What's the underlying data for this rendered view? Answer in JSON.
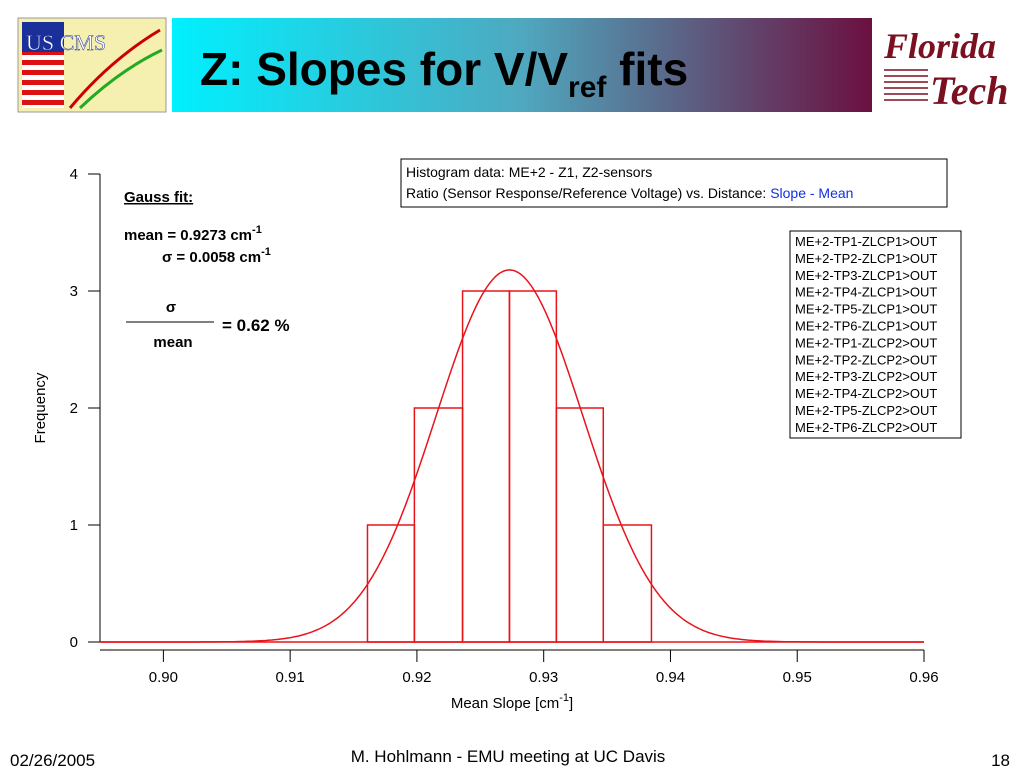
{
  "slide": {
    "title": "Z:  Slopes for V/V",
    "title_sub": "ref",
    "title_end": " fits",
    "logo_left": "US CMS",
    "logo_right_1": "Florida",
    "logo_right_2": "Tech",
    "footer_left": "02/26/2005",
    "footer_center": "M. Hohlmann - EMU meeting at UC Davis",
    "footer_right": "18"
  },
  "chart_data": {
    "type": "histogram",
    "color": "#e8141c",
    "bins": [
      0.9161,
      0.9198,
      0.9236,
      0.9273,
      0.931,
      0.9347,
      0.9385
    ],
    "counts": [
      1,
      2,
      3,
      3,
      2,
      1
    ],
    "xlim": [
      0.895,
      0.96
    ],
    "ylim": [
      0,
      4
    ],
    "xticks": [
      {
        "value": 0.9,
        "label": "0.90"
      },
      0.91,
      0.92,
      0.93,
      0.94,
      0.95,
      0.96
    ],
    "yticks": [
      0,
      1,
      2,
      3,
      4
    ],
    "xlabel": "Mean Slope [cm",
    "xlabel_sup": "-1",
    "xlabel_end": "]",
    "ylabel": "Frequency",
    "fit": {
      "heading": "Gauss fit:",
      "mean_label": "mean = ",
      "sigma_label": "σ = ",
      "unit": " cm",
      "unit_sup": "-1",
      "mean": 0.9273,
      "sigma": 0.0058,
      "amplitude": 3.18,
      "ratio_num": "σ",
      "ratio_den": "mean",
      "ratio_text": "=  0.62 %"
    },
    "info": {
      "line1": "Histogram data: ME+2 - Z1, Z2-sensors",
      "line2": "Ratio (Sensor Response/Reference Voltage) vs. Distance: ",
      "line2_blue": "Slope - Mean"
    },
    "legend_entries": [
      "ME+2-TP1-ZLCP1>OUT",
      "ME+2-TP2-ZLCP1>OUT",
      "ME+2-TP3-ZLCP1>OUT",
      "ME+2-TP4-ZLCP1>OUT",
      "ME+2-TP5-ZLCP1>OUT",
      "ME+2-TP6-ZLCP1>OUT",
      "ME+2-TP1-ZLCP2>OUT",
      "ME+2-TP2-ZLCP2>OUT",
      "ME+2-TP3-ZLCP2>OUT",
      "ME+2-TP4-ZLCP2>OUT",
      "ME+2-TP5-ZLCP2>OUT",
      "ME+2-TP6-ZLCP2>OUT"
    ]
  }
}
